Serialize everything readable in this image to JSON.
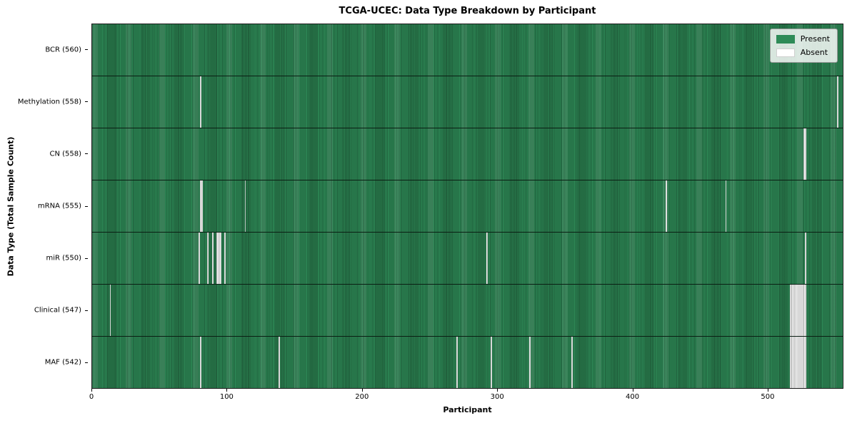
{
  "chart_data": {
    "type": "heatmap",
    "title": "TCGA-UCEC: Data Type Breakdown by Participant",
    "xlabel": "Participant",
    "ylabel": "Data Type (Total Sample Count)",
    "x_max": 556,
    "x_ticks": [
      0,
      100,
      200,
      300,
      400,
      500
    ],
    "grid": false,
    "legend_position": "upper right",
    "colors": {
      "present": "#2e8b57",
      "absent": "#ffffff"
    },
    "legend": [
      {
        "label": "Present",
        "color": "#2e8b57"
      },
      {
        "label": "Absent",
        "color": "#ffffff"
      }
    ],
    "rows": [
      {
        "label": "BCR (560)",
        "total": 560,
        "absent": []
      },
      {
        "label": "Methylation (558)",
        "total": 558,
        "absent": [
          80,
          552
        ]
      },
      {
        "label": "CN (558)",
        "total": 558,
        "absent": [
          527,
          528
        ]
      },
      {
        "label": "mRNA (555)",
        "total": 555,
        "absent": [
          80,
          81,
          113,
          425,
          469
        ]
      },
      {
        "label": "miR (550)",
        "total": 550,
        "absent": [
          79,
          85,
          89,
          92,
          93,
          94,
          95,
          98,
          292,
          528
        ]
      },
      {
        "label": "Clinical (547)",
        "total": 547,
        "absent": [
          13,
          517,
          518,
          519,
          520,
          521,
          522,
          523,
          524,
          525,
          526,
          527,
          528
        ]
      },
      {
        "label": "MAF (542)",
        "total": 542,
        "absent": [
          80,
          138,
          270,
          295,
          324,
          355,
          517,
          518,
          519,
          520,
          521,
          522,
          523,
          524,
          525,
          526,
          527,
          528
        ]
      }
    ]
  }
}
